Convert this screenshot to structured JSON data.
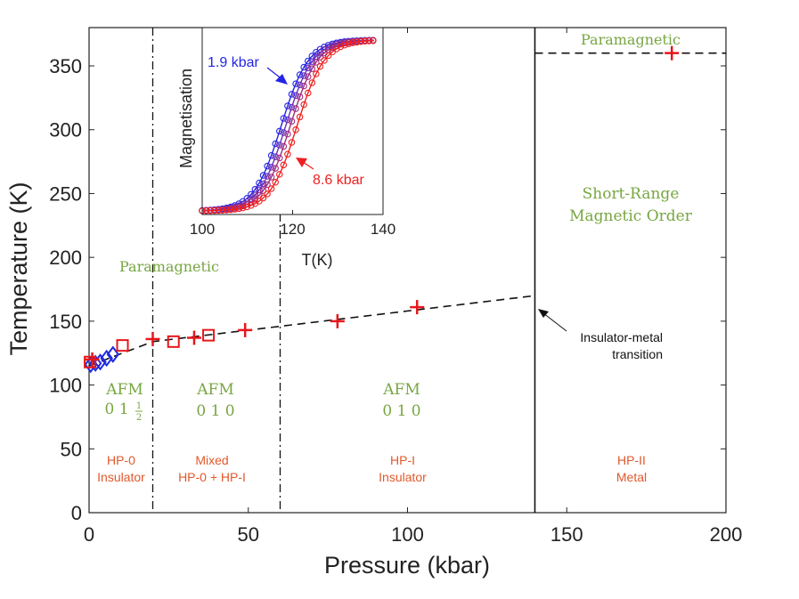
{
  "chart_data": [
    {
      "type": "scatter",
      "xlabel": "Pressure (kbar)",
      "ylabel": "Temperature (K)",
      "xlim": [
        0,
        200
      ],
      "ylim": [
        0,
        380
      ],
      "x_ticks": [
        0,
        50,
        100,
        150,
        200
      ],
      "y_ticks": [
        0,
        50,
        100,
        150,
        200,
        250,
        300,
        350
      ],
      "series": [
        {
          "name": "blue-diamonds",
          "marker": "diamond",
          "color": "#1f2be0",
          "points": [
            [
              0.5,
              116
            ],
            [
              2,
              117
            ],
            [
              3.5,
              118
            ],
            [
              5.5,
              121
            ],
            [
              7.5,
              124
            ]
          ]
        },
        {
          "name": "red-squares",
          "marker": "square",
          "color": "#e8161b",
          "points": [
            [
              0.3,
              118
            ],
            [
              10.5,
              131
            ],
            [
              26.5,
              134
            ],
            [
              37.5,
              139
            ]
          ]
        },
        {
          "name": "red-crosses",
          "marker": "plus",
          "color": "#e8161b",
          "points": [
            [
              1,
              120
            ],
            [
              20,
              136
            ],
            [
              33,
              137
            ],
            [
              49,
              143
            ],
            [
              78,
              150
            ],
            [
              103,
              161
            ],
            [
              183,
              360
            ]
          ]
        }
      ],
      "guide_lines": {
        "trend_dashed": [
          [
            0,
            115
          ],
          [
            20,
            134
          ],
          [
            140,
            170
          ]
        ],
        "dashdot_x": [
          20,
          60
        ],
        "solid_x": 140,
        "dashed_y": 360,
        "dashed_y_from_x": 140
      },
      "annotations": {
        "paramagnetic_low": "Paramagnetic",
        "paramagnetic_high": "Paramagnetic",
        "short_range_line1": "Short-Range",
        "short_range_line2": "Magnetic Order",
        "afm1_label": "AFM",
        "afm1_vec": "0 1",
        "afm1_half_num": "1",
        "afm1_half_den": "2",
        "afm2_label": "AFM",
        "afm2_vec": "0 1 0",
        "afm3_label": "AFM",
        "afm3_vec": "0 1 0",
        "phase1_line1": "HP-0",
        "phase1_line2": "Insulator",
        "phase2_line1": "Mixed",
        "phase2_line2": "HP-0 + HP-I",
        "phase3_line1": "HP-I",
        "phase3_line2": "Insulator",
        "phase4_line1": "HP-II",
        "phase4_line2": "Metal",
        "transition_line1": "Insulator-metal",
        "transition_line2": "transition"
      }
    },
    {
      "type": "line",
      "xlabel": "T(K)",
      "ylabel": "Magnetisation",
      "xlim": [
        100,
        140
      ],
      "ylim": [
        0,
        1
      ],
      "x_ticks": [
        100,
        120,
        140
      ],
      "curves": [
        {
          "pressure": 1.9,
          "label": "1.9 kbar",
          "color": "#2424e6",
          "midpoint": 117.5,
          "width": 3.0
        },
        {
          "pressure": 4.0,
          "color": "#6a2fb8",
          "midpoint": 118.5,
          "width": 3.0
        },
        {
          "pressure": 6.0,
          "color": "#a12b7f",
          "midpoint": 119.5,
          "width": 3.0
        },
        {
          "pressure": 8.6,
          "label": "8.6 kbar",
          "color": "#ef2020",
          "midpoint": 121.0,
          "width": 3.0
        }
      ]
    }
  ]
}
